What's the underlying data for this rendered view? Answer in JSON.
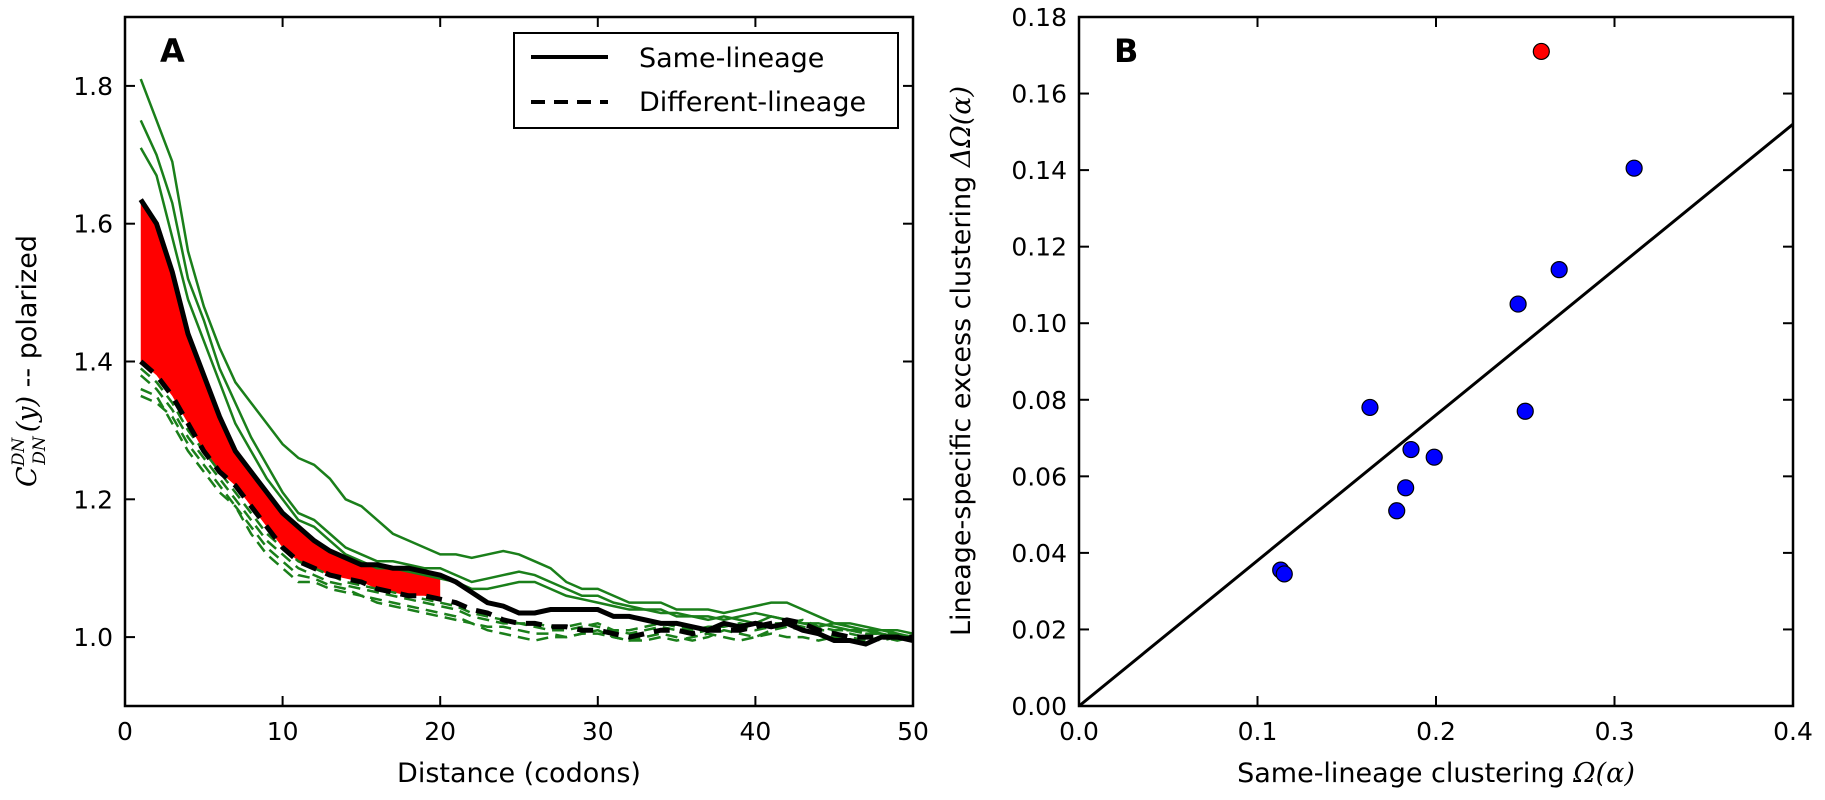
{
  "chart_data": [
    {
      "panel": "A",
      "type": "line",
      "xlabel": "Distance (codons)",
      "ylabel_prefix": "C",
      "ylabel_super": "DN",
      "ylabel_sub": "DN",
      "ylabel_arg": "(y)",
      "ylabel_suffix": " -- polarized",
      "xlim": [
        0,
        50
      ],
      "ylim": [
        0.9,
        1.9
      ],
      "xticks": [
        0,
        10,
        20,
        30,
        40,
        50
      ],
      "yticks": [
        1.0,
        1.2,
        1.4,
        1.6,
        1.8
      ],
      "xtick_labels": [
        "0",
        "10",
        "20",
        "30",
        "40",
        "50"
      ],
      "ytick_labels": [
        "1.0",
        "1.2",
        "1.4",
        "1.6",
        "1.8"
      ],
      "legend": {
        "placement": "top-right",
        "entries": [
          {
            "label": "Same-lineage",
            "style": "solid"
          },
          {
            "label": "Different-lineage",
            "style": "dashed"
          }
        ]
      },
      "colors": {
        "mean": "#000000",
        "individual": "#1a7f1a",
        "fill": "#ff0000"
      },
      "series": [
        {
          "name": "Same-lineage",
          "style": "solid",
          "color": "#000000",
          "x": [
            1,
            2,
            3,
            4,
            5,
            6,
            7,
            8,
            9,
            10,
            11,
            12,
            13,
            14,
            15,
            16,
            17,
            18,
            19,
            20,
            21,
            22,
            23,
            24,
            25,
            26,
            27,
            28,
            29,
            30,
            31,
            32,
            33,
            34,
            35,
            36,
            37,
            38,
            39,
            40,
            41,
            42,
            43,
            44,
            45,
            46,
            47,
            48,
            49,
            50
          ],
          "y": [
            1.635,
            1.6,
            1.53,
            1.44,
            1.38,
            1.32,
            1.27,
            1.24,
            1.21,
            1.18,
            1.16,
            1.14,
            1.125,
            1.115,
            1.105,
            1.105,
            1.1,
            1.1,
            1.095,
            1.09,
            1.08,
            1.065,
            1.05,
            1.045,
            1.035,
            1.035,
            1.04,
            1.04,
            1.04,
            1.04,
            1.03,
            1.03,
            1.025,
            1.02,
            1.02,
            1.015,
            1.01,
            1.02,
            1.015,
            1.02,
            1.015,
            1.02,
            1.01,
            1.005,
            0.995,
            0.995,
            0.99,
            1.0,
            1.0,
            0.995
          ]
        },
        {
          "name": "Different-lineage",
          "style": "dashed",
          "color": "#000000",
          "x": [
            1,
            2,
            3,
            4,
            5,
            6,
            7,
            8,
            9,
            10,
            11,
            12,
            13,
            14,
            15,
            16,
            17,
            18,
            19,
            20,
            21,
            22,
            23,
            24,
            25,
            26,
            27,
            28,
            29,
            30,
            31,
            32,
            33,
            34,
            35,
            36,
            37,
            38,
            39,
            40,
            41,
            42,
            43,
            44,
            45,
            46,
            47,
            48,
            49,
            50
          ],
          "y": [
            1.4,
            1.38,
            1.35,
            1.31,
            1.27,
            1.24,
            1.22,
            1.19,
            1.16,
            1.13,
            1.11,
            1.1,
            1.09,
            1.085,
            1.08,
            1.07,
            1.065,
            1.06,
            1.06,
            1.055,
            1.05,
            1.04,
            1.035,
            1.025,
            1.02,
            1.02,
            1.015,
            1.015,
            1.01,
            1.01,
            1.005,
            1.0,
            1.005,
            1.01,
            1.01,
            1.005,
            1.01,
            1.01,
            1.01,
            1.015,
            1.02,
            1.025,
            1.02,
            1.01,
            1.005,
            1.0,
            1.0,
            1.0,
            1.0,
            1.0
          ]
        }
      ],
      "individual_same": [
        [
          1.81,
          1.75,
          1.69,
          1.56,
          1.48,
          1.42,
          1.37,
          1.34,
          1.31,
          1.28,
          1.26,
          1.25,
          1.23,
          1.2,
          1.19,
          1.17,
          1.15,
          1.14,
          1.13,
          1.12,
          1.12,
          1.115,
          1.12,
          1.125,
          1.12,
          1.11,
          1.1,
          1.08,
          1.07,
          1.07,
          1.06,
          1.05,
          1.05,
          1.05,
          1.04,
          1.04,
          1.04,
          1.035,
          1.04,
          1.045,
          1.05,
          1.05,
          1.04,
          1.03,
          1.02,
          1.02,
          1.015,
          1.01,
          1.01,
          1.005
        ],
        [
          1.75,
          1.7,
          1.63,
          1.52,
          1.46,
          1.39,
          1.34,
          1.29,
          1.25,
          1.21,
          1.18,
          1.17,
          1.15,
          1.13,
          1.12,
          1.11,
          1.11,
          1.105,
          1.1,
          1.1,
          1.09,
          1.08,
          1.085,
          1.09,
          1.095,
          1.09,
          1.08,
          1.07,
          1.06,
          1.06,
          1.05,
          1.045,
          1.04,
          1.035,
          1.035,
          1.03,
          1.03,
          1.025,
          1.03,
          1.035,
          1.03,
          1.025,
          1.02,
          1.02,
          1.015,
          1.01,
          1.01,
          1.01,
          1.005,
          1.0
        ],
        [
          1.71,
          1.67,
          1.58,
          1.49,
          1.43,
          1.37,
          1.31,
          1.27,
          1.23,
          1.2,
          1.17,
          1.16,
          1.14,
          1.12,
          1.11,
          1.1,
          1.1,
          1.095,
          1.09,
          1.085,
          1.08,
          1.07,
          1.07,
          1.075,
          1.08,
          1.08,
          1.07,
          1.06,
          1.055,
          1.05,
          1.045,
          1.04,
          1.04,
          1.04,
          1.03,
          1.03,
          1.025,
          1.03,
          1.025,
          1.02,
          1.03,
          1.025,
          1.02,
          1.015,
          1.02,
          1.015,
          1.01,
          1.005,
          1.0,
          1.0
        ]
      ],
      "individual_diff": [
        [
          1.38,
          1.36,
          1.33,
          1.29,
          1.26,
          1.23,
          1.2,
          1.17,
          1.14,
          1.12,
          1.1,
          1.09,
          1.08,
          1.075,
          1.07,
          1.065,
          1.06,
          1.055,
          1.05,
          1.045,
          1.04,
          1.03,
          1.025,
          1.02,
          1.02,
          1.015,
          1.01,
          1.01,
          1.015,
          1.02,
          1.01,
          1.005,
          1.01,
          1.015,
          1.01,
          1.005,
          1.01,
          1.02,
          1.015,
          1.01,
          1.015,
          1.02,
          1.025,
          1.015,
          1.01,
          1.01,
          1.005,
          1.005,
          1.0,
          1.0
        ],
        [
          1.36,
          1.35,
          1.31,
          1.27,
          1.24,
          1.21,
          1.19,
          1.16,
          1.13,
          1.11,
          1.09,
          1.085,
          1.075,
          1.07,
          1.06,
          1.055,
          1.05,
          1.045,
          1.04,
          1.035,
          1.03,
          1.02,
          1.015,
          1.015,
          1.01,
          1.005,
          1.005,
          1.0,
          1.005,
          1.01,
          1.0,
          0.995,
          1.0,
          1.005,
          1.0,
          0.995,
          1.0,
          1.01,
          1.005,
          1.0,
          1.01,
          1.015,
          1.01,
          1.005,
          1.0,
          1.005,
          1.0,
          0.995,
          1.0,
          0.995
        ],
        [
          1.39,
          1.37,
          1.34,
          1.3,
          1.27,
          1.24,
          1.21,
          1.18,
          1.15,
          1.13,
          1.11,
          1.1,
          1.09,
          1.08,
          1.075,
          1.07,
          1.065,
          1.06,
          1.055,
          1.05,
          1.045,
          1.035,
          1.03,
          1.025,
          1.02,
          1.02,
          1.015,
          1.015,
          1.02,
          1.015,
          1.01,
          1.01,
          1.015,
          1.02,
          1.015,
          1.01,
          1.015,
          1.015,
          1.02,
          1.015,
          1.02,
          1.02,
          1.015,
          1.01,
          1.01,
          1.01,
          1.005,
          1.005,
          1.005,
          1.0
        ],
        [
          1.35,
          1.34,
          1.32,
          1.28,
          1.25,
          1.22,
          1.19,
          1.15,
          1.12,
          1.1,
          1.08,
          1.08,
          1.07,
          1.065,
          1.06,
          1.05,
          1.045,
          1.04,
          1.035,
          1.03,
          1.025,
          1.02,
          1.01,
          1.005,
          1.0,
          0.995,
          1.0,
          1.0,
          1.005,
          1.005,
          1.0,
          0.995,
          0.995,
          1.0,
          0.995,
          1.0,
          1.005,
          1.0,
          0.995,
          1.0,
          1.005,
          1.0,
          1.0,
          0.995,
          1.0,
          1.0,
          0.995,
          1.0,
          0.995,
          1.0
        ]
      ],
      "fill_between": {
        "x_max": 20
      }
    },
    {
      "panel": "B",
      "type": "scatter",
      "xlabel_text": "Same-lineage clustering ",
      "xlabel_math": "Ω(α)",
      "ylabel_text": "Lineage-specific excess clustering ",
      "ylabel_math": "ΔΩ(α)",
      "xlim": [
        0.0,
        0.4
      ],
      "ylim": [
        0.0,
        0.18
      ],
      "xticks": [
        0.0,
        0.1,
        0.2,
        0.3,
        0.4
      ],
      "yticks": [
        0.0,
        0.02,
        0.04,
        0.06,
        0.08,
        0.1,
        0.12,
        0.14,
        0.16,
        0.18
      ],
      "xtick_labels": [
        "0.0",
        "0.1",
        "0.2",
        "0.3",
        "0.4"
      ],
      "ytick_labels": [
        "0.00",
        "0.02",
        "0.04",
        "0.06",
        "0.08",
        "0.10",
        "0.12",
        "0.14",
        "0.16",
        "0.18"
      ],
      "colors": {
        "points": "#0000ff",
        "highlight": "#ff0000",
        "line": "#000000"
      },
      "points": [
        {
          "x": 0.113,
          "y": 0.0355,
          "color": "blue"
        },
        {
          "x": 0.115,
          "y": 0.0345,
          "color": "blue"
        },
        {
          "x": 0.163,
          "y": 0.078,
          "color": "blue"
        },
        {
          "x": 0.178,
          "y": 0.051,
          "color": "blue"
        },
        {
          "x": 0.183,
          "y": 0.057,
          "color": "blue"
        },
        {
          "x": 0.186,
          "y": 0.067,
          "color": "blue"
        },
        {
          "x": 0.199,
          "y": 0.065,
          "color": "blue"
        },
        {
          "x": 0.246,
          "y": 0.105,
          "color": "blue"
        },
        {
          "x": 0.25,
          "y": 0.077,
          "color": "blue"
        },
        {
          "x": 0.259,
          "y": 0.171,
          "color": "red"
        },
        {
          "x": 0.269,
          "y": 0.114,
          "color": "blue"
        },
        {
          "x": 0.311,
          "y": 0.1405,
          "color": "blue"
        }
      ],
      "fit_line": {
        "x": [
          0.0,
          0.4
        ],
        "y": [
          0.0,
          0.152
        ]
      }
    }
  ]
}
